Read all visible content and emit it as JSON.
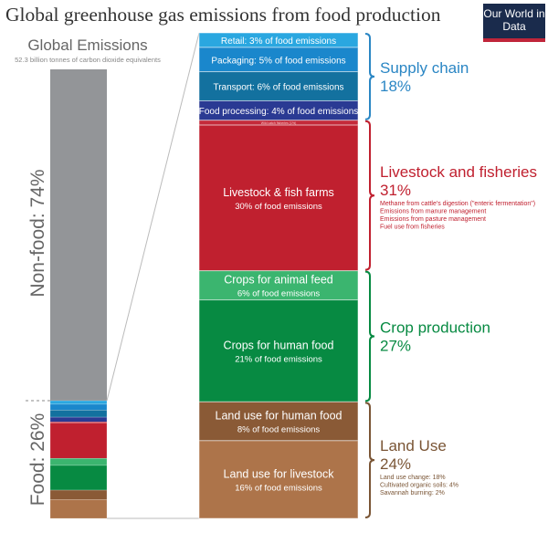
{
  "title": "Global greenhouse gas emissions from food production",
  "logo": "Our World in Data",
  "chart_data": {
    "type": "bar",
    "title": "Global greenhouse gas emissions from food production",
    "left_bar": {
      "heading": "Global Emissions",
      "subheading": "52.3 billion tonnes of carbon dioxide equivalents",
      "nonfood": {
        "label": "Non-food: 74%",
        "value": 74
      },
      "food": {
        "label": "Food: 26%",
        "value": 26
      }
    },
    "segments": [
      {
        "label": "Retail: 3% of food emissions",
        "sub": "",
        "value": 3,
        "color": "#2aa7e0",
        "group": 0
      },
      {
        "label": "Packaging: 5% of food emissions",
        "sub": "",
        "value": 5,
        "color": "#1a87cc",
        "group": 0
      },
      {
        "label": "Transport: 6% of food emissions",
        "sub": "",
        "value": 6,
        "color": "#13719f",
        "group": 0
      },
      {
        "label": "Food processing: 4% of food emissions",
        "sub": "",
        "value": 4,
        "color": "#2a3a93",
        "group": 0
      },
      {
        "label": "Wild catch fisheries (1%)",
        "sub": "",
        "value": 1,
        "color": "#c42a3a",
        "group": 1
      },
      {
        "label": "Livestock & fish farms",
        "sub": "30% of food emissions",
        "value": 30,
        "color": "#c0202f",
        "group": 1
      },
      {
        "label": "Crops for animal feed",
        "sub": "6% of food emissions",
        "value": 6,
        "color": "#3bb56f",
        "group": 2
      },
      {
        "label": "Crops for human food",
        "sub": "21% of food emissions",
        "value": 21,
        "color": "#078a42",
        "group": 2
      },
      {
        "label": "Land use for human food",
        "sub": "8% of food emissions",
        "value": 8,
        "color": "#8a5a36",
        "group": 3
      },
      {
        "label": "Land use for livestock",
        "sub": "16% of food emissions",
        "value": 16,
        "color": "#ad744a",
        "group": 3
      }
    ],
    "groups": [
      {
        "name": "Supply chain",
        "pct": "18%",
        "color": "#2a86c4",
        "notes": []
      },
      {
        "name": "Livestock and fisheries",
        "pct": "31%",
        "color": "#c0202f",
        "notes": [
          "Methane from cattle's digestion (\"enteric fermentation\")",
          "Emissions from manure management",
          "Emissions from pasture management",
          "Fuel use from fisheries"
        ]
      },
      {
        "name": "Crop production",
        "pct": "27%",
        "color": "#078a42",
        "notes": []
      },
      {
        "name": "Land Use",
        "pct": "24%",
        "color": "#7a5535",
        "notes": [
          "Land use change: 18%",
          "Cultivated organic soils: 4%",
          "Savannah burning: 2%"
        ]
      }
    ]
  }
}
